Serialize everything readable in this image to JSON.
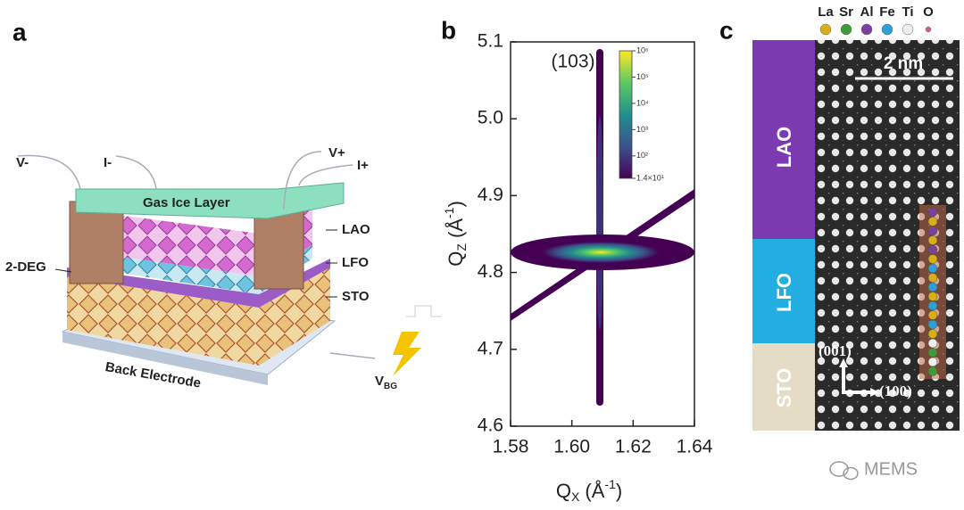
{
  "panel_a": {
    "label": "a",
    "v_minus": "V-",
    "i_minus": "I-",
    "v_plus": "V+",
    "i_plus": "I+",
    "gas_layer": "Gas Ice Layer",
    "lao": "LAO",
    "lfo": "LFO",
    "sto": "STO",
    "deg": "2-DEG",
    "back_electrode": "Back Electrode",
    "v_bg": {
      "main": "V",
      "sub": "BG"
    }
  },
  "chart_data": {
    "type": "map",
    "panel_label": "b",
    "x_label": {
      "main": "Q",
      "sub": "X",
      "unit": " (Å",
      "sup": "-1",
      "close": ")"
    },
    "y_label": {
      "main": "Q",
      "sub": "Z",
      "unit": " (Å",
      "sup": "-1",
      "close": ")"
    },
    "annotation": "(103)",
    "xlim": [
      1.58,
      1.64
    ],
    "xticks": [
      1.58,
      {
        "value": 1.6,
        "label": "1.60"
      },
      1.62,
      1.64
    ],
    "ylim": [
      4.6,
      5.1
    ],
    "yticks": [
      4.6,
      4.7,
      4.8,
      4.9,
      {
        "value": 5,
        "label": "5.0"
      },
      5.1
    ],
    "colorbar": {
      "scale": "log",
      "lim": [
        14,
        1000000
      ],
      "colors": [
        "#440154",
        "#3b528b",
        "#21908d",
        "#5dc963",
        "#fde725"
      ],
      "ticks": [
        {
          "value": 14,
          "label": "1.4×10¹"
        },
        {
          "value": 100,
          "label": "10²"
        },
        {
          "value": 1000,
          "label": "10³"
        },
        {
          "value": 10000,
          "label": "10⁴"
        },
        {
          "value": 100000,
          "label": "10⁵"
        },
        {
          "value": 1000000,
          "label": "10⁶"
        }
      ]
    }
  },
  "panel_c": {
    "label": "c",
    "legend": [
      {
        "name": "La",
        "color": "#d9ae1a"
      },
      {
        "name": "Sr",
        "color": "#3f9a3a"
      },
      {
        "name": "Al",
        "color": "#7b3fa0"
      },
      {
        "name": "Fe",
        "color": "#2aa0d8"
      },
      {
        "name": "Ti",
        "color": "#eeeeee"
      },
      {
        "name": "O",
        "color": "#d0607a"
      }
    ],
    "scale_bar": "2 nm",
    "lao": "LAO",
    "lfo": "LFO",
    "sto": "STO",
    "dir_001": "(001)",
    "dir_100": "(100)"
  },
  "watermark": "MEMS"
}
